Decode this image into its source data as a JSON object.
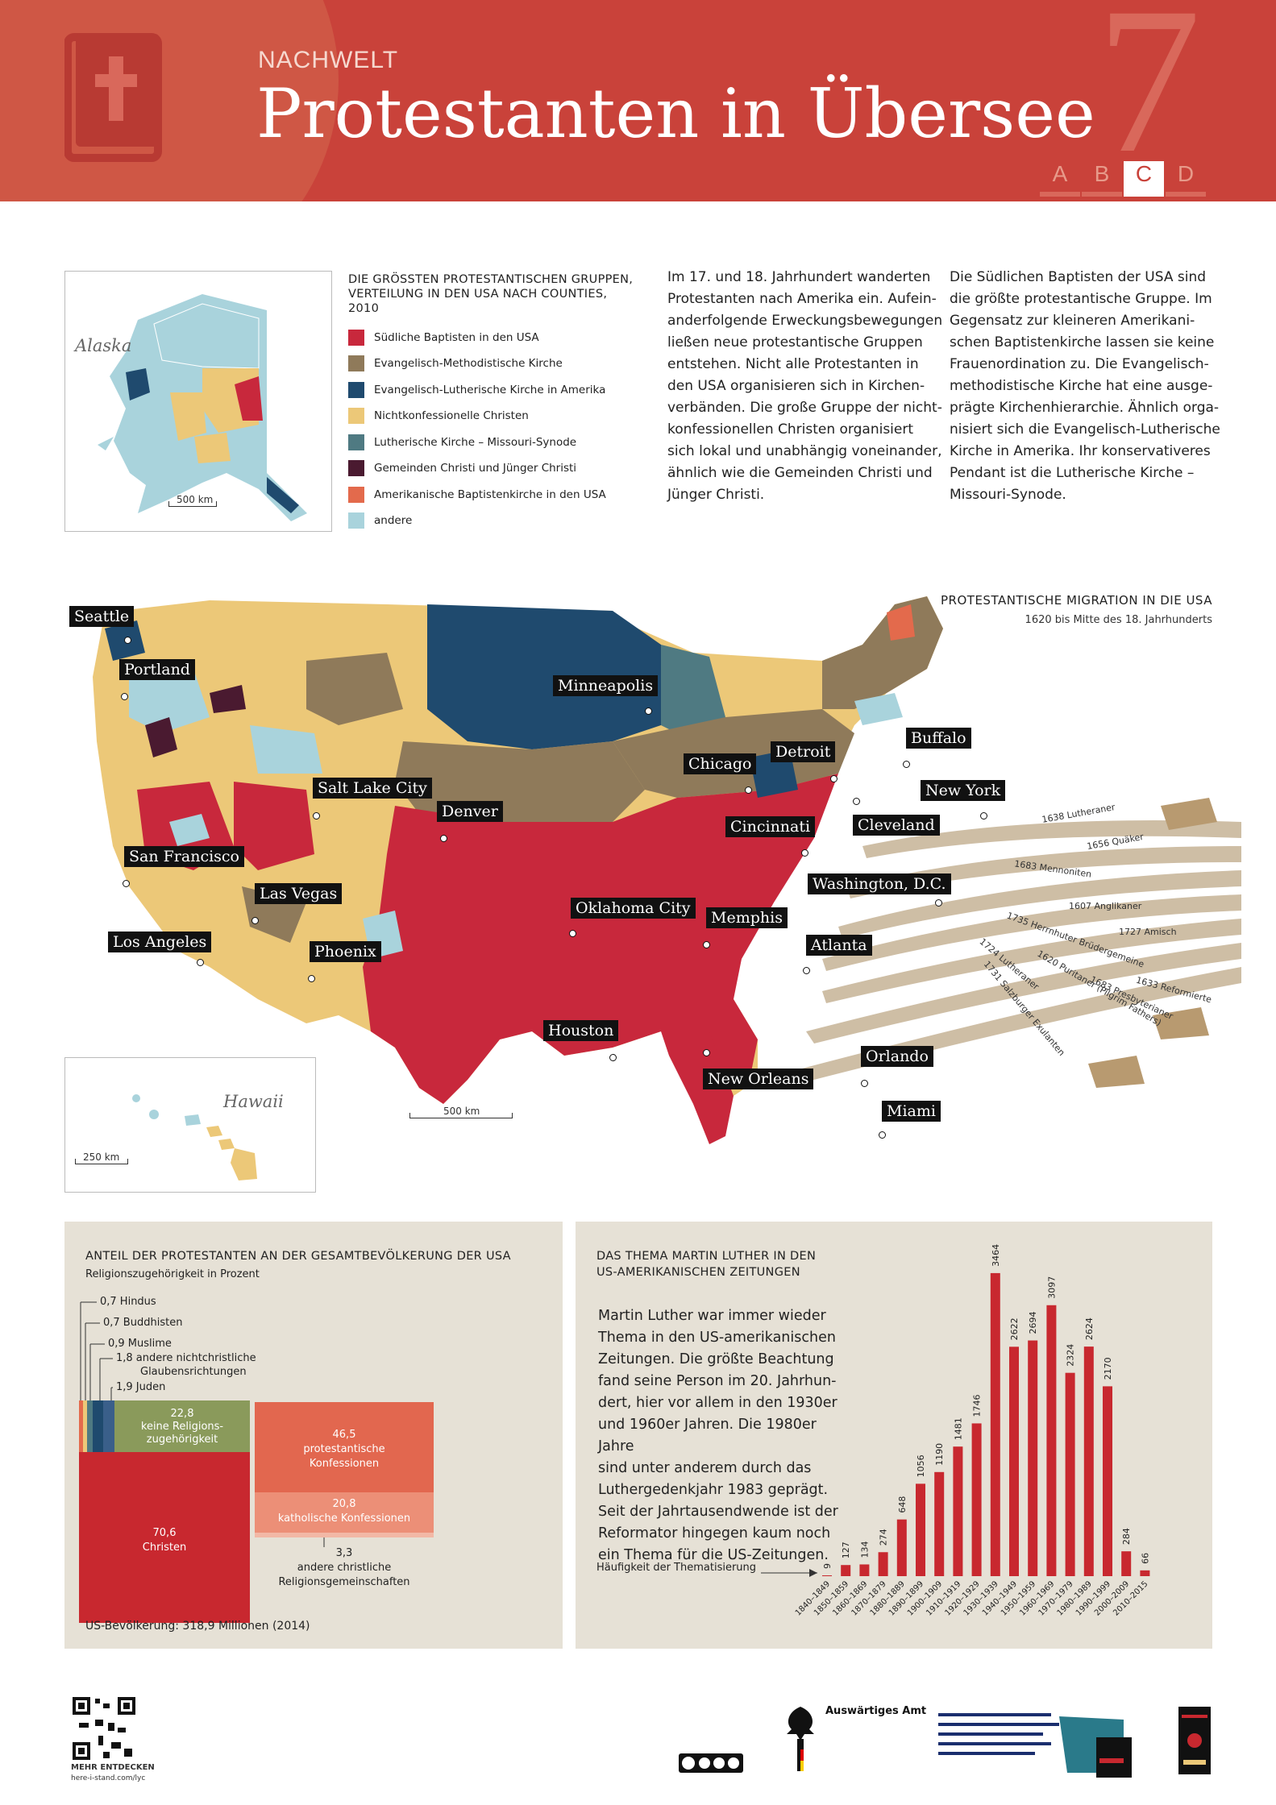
{
  "header": {
    "section_label": "NACHWELT",
    "title": "Protestanten in Übersee",
    "chapter_number": "7",
    "tabs": [
      "A",
      "B",
      "C",
      "D"
    ],
    "active_tab": "C"
  },
  "alaska": {
    "label": "Alaska",
    "scale": "500 km"
  },
  "legend": {
    "title": "DIE GRÖSSTEN PROTESTANTISCHEN GRUPPEN, VERTEILUNG IN DEN USA NACH COUNTIES, 2010",
    "items": [
      {
        "label": "Südliche Baptisten in den USA",
        "color": "#c8283c"
      },
      {
        "label": "Evangelisch-Methodistische Kirche",
        "color": "#8f7a5a"
      },
      {
        "label": "Evangelisch-Lutherische Kirche in Amerika",
        "color": "#1f4a6e"
      },
      {
        "label": "Nichtkonfessionelle Christen",
        "color": "#ecc878"
      },
      {
        "label": "Lutherische Kirche – Missouri-Synode",
        "color": "#4f7a82"
      },
      {
        "label": "Gemeinden Christi und Jünger Christi",
        "color": "#4a1a30"
      },
      {
        "label": "Amerikanische Baptistenkirche in den USA",
        "color": "#e36a4c"
      },
      {
        "label": "andere",
        "color": "#a9d3dc"
      }
    ]
  },
  "text_col1": {
    "lines": [
      "Im 17. und 18. Jahrhundert wanderten",
      "Protestanten nach Amerika ein. Aufein-",
      "anderfolgende Erweckungsbewegungen",
      "ließen neue protestantische Gruppen",
      "entstehen. Nicht alle Protestanten in",
      "den USA organisieren sich in Kirchen-",
      "verbänden. Die große Gruppe der nicht-",
      "konfessionellen Christen organisiert",
      "sich lokal und unabhängig voneinander,",
      "ähnlich wie die Gemeinden Christi und",
      "Jünger Christi."
    ]
  },
  "text_col2": {
    "lines": [
      "Die Südlichen Baptisten der USA sind",
      "die größte protestantische Gruppe. Im",
      "Gegensatz zur kleineren Amerikani-",
      "schen Baptistenkirche lassen sie keine",
      "Frauenordination zu. Die Evangelisch-",
      "methodistische Kirche hat eine ausge-",
      "prägte Kirchenhierarchie. Ähnlich orga-",
      "nisiert sich die Evangelisch-Lutherische",
      "Kirche in Amerika. Ihr konservativeres",
      "Pendant ist die Lutherische Kirche –",
      "Missouri-Synode."
    ]
  },
  "map": {
    "cities": [
      "Seattle",
      "Portland",
      "Minneapolis",
      "Salt Lake City",
      "Denver",
      "San Francisco",
      "Las Vegas",
      "Los Angeles",
      "Phoenix",
      "Chicago",
      "Detroit",
      "Buffalo",
      "New York",
      "Cleveland",
      "Cincinnati",
      "Washington, D.C.",
      "Oklahoma City",
      "Memphis",
      "Atlanta",
      "Houston",
      "New Orleans",
      "Orlando",
      "Miami"
    ],
    "scale": "500 km",
    "migration_title": "PROTESTANTISCHE MIGRATION IN DIE USA",
    "migration_subtitle": "1620 bis Mitte des 18. Jahrhunderts",
    "arrows": [
      "1638 Lutheraner",
      "1656 Quäker",
      "1683 Mennoniten",
      "1607 Anglikaner",
      "1727 Amisch",
      "1735 Herrnhuter Brüdergemeine",
      "1724 Lutheraner",
      "1620 Puritaner (Pilgrim Fathers)",
      "1683 Presbyterianer",
      "1633 Reformierte",
      "1731 Salzburger Exulanten"
    ]
  },
  "hawaii": {
    "label": "Hawaii",
    "scale": "250 km"
  },
  "population": {
    "title": "ANTEIL DER PROTESTANTEN AN DER GESAMTBEVÖLKERUNG DER USA",
    "subtitle": "Religionszugehörigkeit in Prozent",
    "small_labels": [
      "0,7  Hindus",
      "0,7  Buddhisten",
      "0,9  Muslime",
      "1,8  andere nichtchristliche",
      "Glaubensrichtungen",
      "1,9  Juden"
    ],
    "none_value": "22,8",
    "none_label_1": "keine Religions-",
    "none_label_2": "zugehörigkeit",
    "christ_value": "70,6",
    "christ_label": "Christen",
    "prot_value": "46,5",
    "prot_label_1": "protestantische",
    "prot_label_2": "Konfessionen",
    "cath_value": "20,8",
    "cath_label": "katholische Konfessionen",
    "other_value": "3,3",
    "other_label_1": "andere christliche",
    "other_label_2": "Religionsgemeinschaften",
    "footer": "US-Bevölkerung: 318,9 Millionen (2014)"
  },
  "luther": {
    "title_1": "DAS THEMA MARTIN LUTHER IN DEN",
    "title_2": "US-AMERIKANISCHEN ZEITUNGEN",
    "text_lines": [
      "Martin Luther war immer wieder",
      "Thema in den US-amerikanischen",
      "Zeitungen. Die größte Beachtung",
      "fand seine Person im 20. Jahrhun-",
      "dert, hier vor allem in den 1930er",
      "und 1960er Jahren. Die 1980er Jahre",
      "sind unter anderem durch das",
      "Luthergedenkjahr 1983 geprägt.",
      "Seit der Jahrtausendwende ist der",
      "Reformator hingegen kaum noch",
      "ein Thema für die US-Zeitungen."
    ],
    "freq_label": "Häufigkeit der Thematisierung"
  },
  "chart_data": {
    "type": "bar",
    "title": "DAS THEMA MARTIN LUTHER IN DEN US-AMERIKANISCHEN ZEITUNGEN",
    "ylabel": "Häufigkeit der Thematisierung",
    "categories": [
      "1840–1849",
      "1850–1859",
      "1860–1869",
      "1870–1879",
      "1880–1889",
      "1890–1899",
      "1900–1909",
      "1910–1919",
      "1920–1929",
      "1930–1939",
      "1940–1949",
      "1950–1959",
      "1960–1969",
      "1970–1979",
      "1980–1989",
      "1990–1999",
      "2000–2009",
      "2010–2015"
    ],
    "values": [
      9,
      127,
      134,
      274,
      648,
      1056,
      1190,
      1481,
      1746,
      3464,
      2622,
      2694,
      3097,
      2324,
      2624,
      2170,
      284,
      66
    ],
    "ylim": [
      0,
      3500
    ],
    "color": "#c8282f"
  },
  "footer": {
    "qr_caption": "MEHR ENTDECKEN",
    "qr_url": "here-i-stand.com/lyc",
    "ministry": "Auswärtiges Amt"
  }
}
